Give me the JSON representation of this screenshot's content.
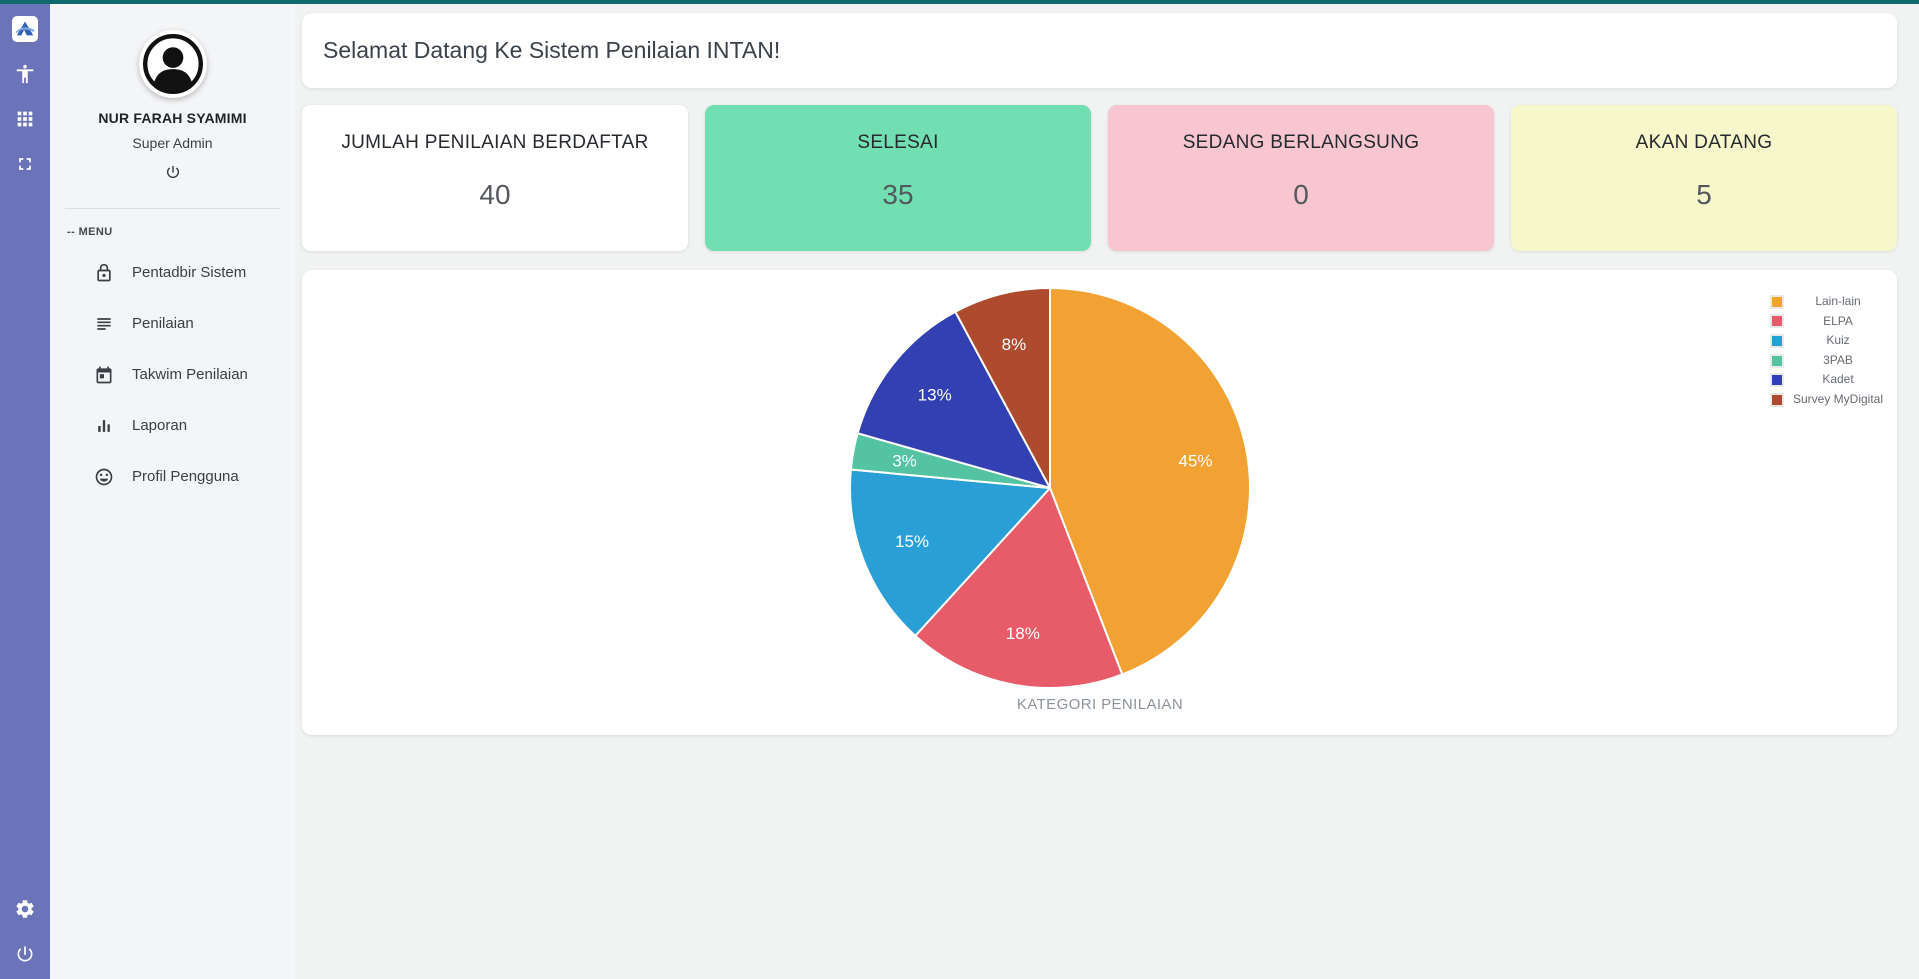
{
  "topbar": {
    "accent_color": "#10696d"
  },
  "rail": {
    "bg_color": "#6b74b8",
    "icons": [
      "app-logo",
      "accessibility",
      "apps-grid",
      "fullscreen",
      "settings",
      "power"
    ]
  },
  "sidebar": {
    "user": {
      "name": "NUR FARAH SYAMIMI",
      "role": "Super Admin"
    },
    "menu_label": "-- MENU",
    "items": [
      {
        "label": "Pentadbir Sistem",
        "icon": "lock"
      },
      {
        "label": "Penilaian",
        "icon": "list"
      },
      {
        "label": "Takwim Penilaian",
        "icon": "calendar"
      },
      {
        "label": "Laporan",
        "icon": "bar-chart"
      },
      {
        "label": "Profil Pengguna",
        "icon": "smiley"
      }
    ]
  },
  "main": {
    "welcome": "Selamat Datang Ke Sistem Penilaian INTAN!",
    "stats": [
      {
        "label": "JUMLAH PENILAIAN BERDAFTAR",
        "value": "40",
        "bg": "#ffffff"
      },
      {
        "label": "SELESAI",
        "value": "35",
        "bg": "#72dfb3"
      },
      {
        "label": "SEDANG BERLANGSUNG",
        "value": "0",
        "bg": "#f8c6d0"
      },
      {
        "label": "AKAN DATANG",
        "value": "5",
        "bg": "#f6f8cb"
      }
    ]
  },
  "chart_data": {
    "type": "pie",
    "title": "KATEGORI PENILAIAN",
    "labels": [
      "Lain-lain",
      "ELPA",
      "Kuiz",
      "3PAB",
      "Kadet",
      "Survey MyDigital"
    ],
    "values": [
      45,
      18,
      15,
      3,
      13,
      8
    ],
    "percent_labels": [
      "45%",
      "18%",
      "15%",
      "3%",
      "13%",
      "8%"
    ],
    "colors": [
      "#f2a232",
      "#e85b68",
      "#299fd6",
      "#54c3a1",
      "#3340b2",
      "#ae4a2d"
    ],
    "legend_position": "right",
    "start_angle_deg": 0,
    "direction": "clockwise",
    "slice_border_color": "#ffffff"
  }
}
